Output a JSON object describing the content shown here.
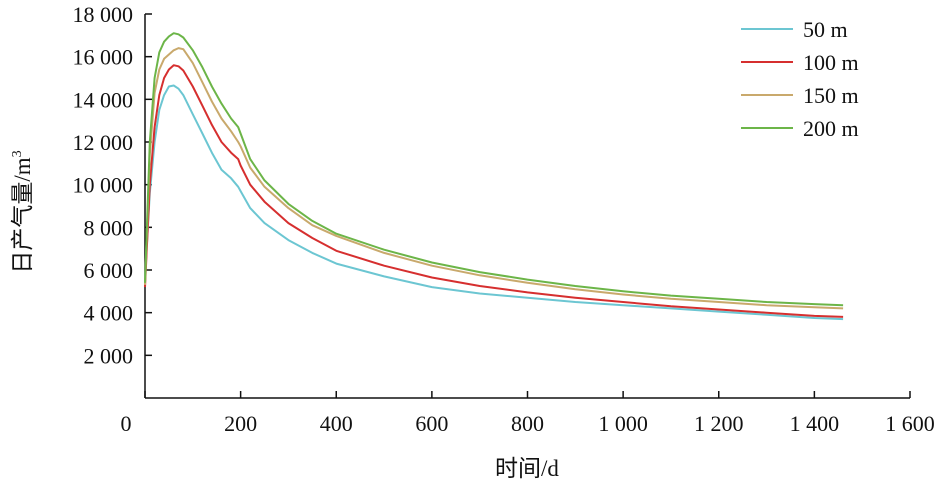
{
  "chart_data": {
    "type": "line",
    "title": "",
    "xlabel": "时间/d",
    "ylabel": "日产气量/m³",
    "xlim": [
      0,
      1600
    ],
    "ylim": [
      0,
      18000
    ],
    "x_ticks": [
      0,
      200,
      400,
      600,
      800,
      1000,
      1200,
      1400,
      1600
    ],
    "x_tick_labels": [
      "0",
      "200",
      "400",
      "600",
      "800",
      "1 000",
      "1 200",
      "1 400",
      "1 600"
    ],
    "y_ticks": [
      2000,
      4000,
      6000,
      8000,
      10000,
      12000,
      14000,
      16000,
      18000
    ],
    "y_tick_labels": [
      "2 000",
      "4 000",
      "6 000",
      "8 000",
      "10 000",
      "12 000",
      "14 000",
      "16 000",
      "18 000"
    ],
    "grid": false,
    "legend_position": "top-right",
    "series": [
      {
        "name": "50 m",
        "color": "#6cc6d2",
        "x": [
          0,
          10,
          20,
          30,
          40,
          50,
          60,
          70,
          80,
          100,
          120,
          140,
          160,
          180,
          195,
          200,
          220,
          250,
          300,
          350,
          400,
          500,
          600,
          700,
          800,
          900,
          1000,
          1100,
          1200,
          1300,
          1400,
          1460
        ],
        "y": [
          5600,
          9600,
          12000,
          13500,
          14200,
          14600,
          14650,
          14500,
          14200,
          13300,
          12400,
          11500,
          10700,
          10300,
          9900,
          9700,
          8900,
          8200,
          7400,
          6800,
          6300,
          5700,
          5200,
          4900,
          4700,
          4500,
          4350,
          4200,
          4050,
          3900,
          3750,
          3700
        ]
      },
      {
        "name": "100 m",
        "color": "#d62f2f",
        "x": [
          0,
          10,
          20,
          30,
          40,
          50,
          60,
          70,
          80,
          100,
          120,
          140,
          160,
          180,
          195,
          200,
          220,
          250,
          300,
          350,
          400,
          500,
          600,
          700,
          800,
          900,
          1000,
          1100,
          1200,
          1300,
          1400,
          1460
        ],
        "y": [
          5200,
          10000,
          12700,
          14200,
          15000,
          15400,
          15600,
          15550,
          15350,
          14600,
          13700,
          12800,
          12000,
          11500,
          11200,
          10900,
          10000,
          9200,
          8200,
          7500,
          6900,
          6200,
          5650,
          5250,
          4950,
          4700,
          4500,
          4300,
          4150,
          4000,
          3850,
          3800
        ]
      },
      {
        "name": "150 m",
        "color": "#c9a96c",
        "x": [
          0,
          10,
          20,
          30,
          40,
          50,
          60,
          70,
          80,
          100,
          120,
          140,
          160,
          180,
          195,
          200,
          220,
          250,
          300,
          350,
          400,
          500,
          600,
          700,
          800,
          900,
          1000,
          1100,
          1200,
          1300,
          1400,
          1460
        ],
        "y": [
          5300,
          11400,
          14300,
          15400,
          15900,
          16100,
          16300,
          16400,
          16350,
          15700,
          14800,
          13900,
          13100,
          12500,
          12000,
          11800,
          10800,
          9900,
          8900,
          8100,
          7600,
          6800,
          6200,
          5750,
          5400,
          5100,
          4850,
          4650,
          4500,
          4350,
          4250,
          4200
        ]
      },
      {
        "name": "200 m",
        "color": "#6cb548",
        "x": [
          0,
          10,
          20,
          30,
          40,
          50,
          60,
          70,
          80,
          100,
          120,
          140,
          160,
          180,
          195,
          200,
          220,
          250,
          300,
          350,
          400,
          500,
          600,
          700,
          800,
          900,
          1000,
          1100,
          1200,
          1300,
          1400,
          1460
        ],
        "y": [
          5400,
          12000,
          15000,
          16200,
          16700,
          16950,
          17100,
          17050,
          16900,
          16300,
          15500,
          14600,
          13800,
          13100,
          12700,
          12400,
          11200,
          10200,
          9100,
          8300,
          7700,
          6950,
          6350,
          5900,
          5550,
          5250,
          5000,
          4800,
          4650,
          4500,
          4400,
          4350
        ]
      }
    ]
  }
}
